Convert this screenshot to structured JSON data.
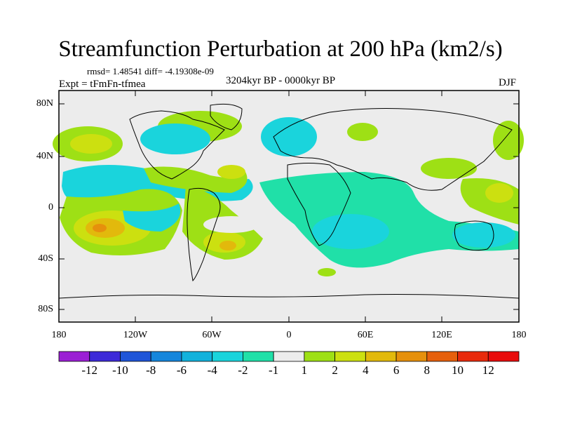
{
  "title": "Streamfunction Perturbation at 200 hPa (km2/s)",
  "stats_line": "rmsd= 1.48541 diff= -4.19308e-09",
  "experiment_line": "Expt = tFmFn-tfmea",
  "period_line": "3204kyr BP - 0000kyr BP",
  "season": "DJF",
  "lat_labels": [
    "80N",
    "40N",
    "0",
    "40S",
    "80S"
  ],
  "lon_labels": [
    "180",
    "120W",
    "60W",
    "0",
    "60E",
    "120E",
    "180"
  ],
  "colorbar": {
    "labels": [
      "-12",
      "-10",
      "-8",
      "-6",
      "-4",
      "-2",
      "-1",
      "1",
      "2",
      "4",
      "6",
      "8",
      "10",
      "12"
    ],
    "colors": [
      "#9b1fd4",
      "#3d2ad8",
      "#1f55d8",
      "#1586dc",
      "#12b2dc",
      "#1ad4dc",
      "#20e0a8",
      "#ececec",
      "#9ee015",
      "#cce010",
      "#e2b90c",
      "#e6900c",
      "#e6600c",
      "#e82a0c",
      "#e80c0c"
    ]
  },
  "colors": {
    "background": "#ececec",
    "land_outline": "#000000",
    "neg_1": "#20e0a8",
    "neg_2": "#1ad4dc",
    "pos_1": "#9ee015",
    "pos_2": "#cce010",
    "pos_3": "#e2b90c",
    "pos_4": "#e6900c"
  }
}
